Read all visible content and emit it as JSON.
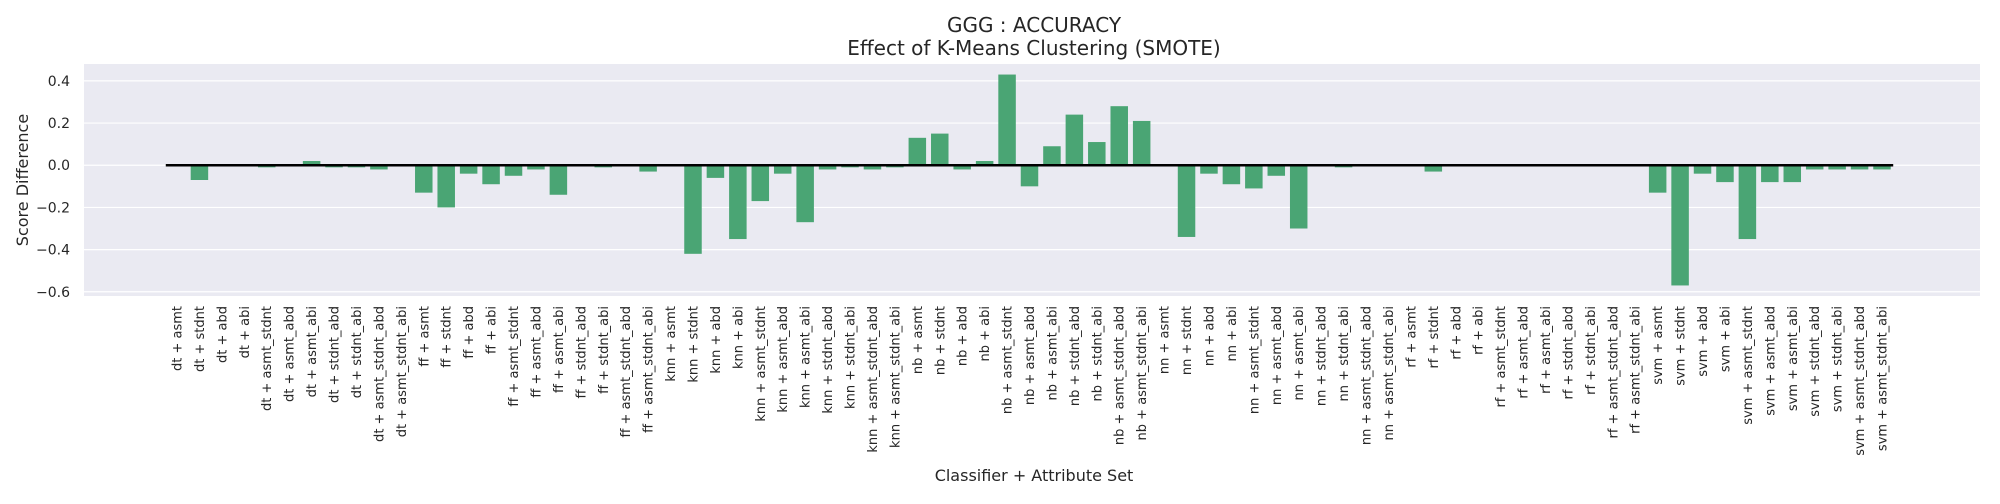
{
  "chart_data": {
    "type": "bar",
    "title": "GGG : ACCURACY",
    "subtitle": "Effect of K-Means Clustering (SMOTE)",
    "xlabel": "Classifier + Attribute Set",
    "ylabel": "Score Difference",
    "ylim": [
      -0.62,
      0.48
    ],
    "yticks": [
      -0.6,
      -0.4,
      -0.2,
      0.0,
      0.2,
      0.4
    ],
    "ytick_labels": [
      "−0.6",
      "−0.4",
      "−0.2",
      "0.0",
      "0.2",
      "0.4"
    ],
    "grid": true,
    "legend": "none",
    "bar_color": "#4aa574",
    "background": "#eaeaf2",
    "categories": [
      "dt + asmt",
      "dt + stdnt",
      "dt + abd",
      "dt + abi",
      "dt + asmt_stdnt",
      "dt + asmt_abd",
      "dt + asmt_abi",
      "dt + stdnt_abd",
      "dt + stdnt_abi",
      "dt + asmt_stdnt_abd",
      "dt + asmt_stdnt_abi",
      "ff + asmt",
      "ff + stdnt",
      "ff + abd",
      "ff + abi",
      "ff + asmt_stdnt",
      "ff + asmt_abd",
      "ff + asmt_abi",
      "ff + stdnt_abd",
      "ff + stdnt_abi",
      "ff + asmt_stdnt_abd",
      "ff + asmt_stdnt_abi",
      "knn + asmt",
      "knn + stdnt",
      "knn + abd",
      "knn + abi",
      "knn + asmt_stdnt",
      "knn + asmt_abd",
      "knn + asmt_abi",
      "knn + stdnt_abd",
      "knn + stdnt_abi",
      "knn + asmt_stdnt_abd",
      "knn + asmt_stdnt_abi",
      "nb + asmt",
      "nb + stdnt",
      "nb + abd",
      "nb + abi",
      "nb + asmt_stdnt",
      "nb + asmt_abd",
      "nb + asmt_abi",
      "nb + stdnt_abd",
      "nb + stdnt_abi",
      "nb + asmt_stdnt_abd",
      "nb + asmt_stdnt_abi",
      "nn + asmt",
      "nn + stdnt",
      "nn + abd",
      "nn + abi",
      "nn + asmt_stdnt",
      "nn + asmt_abd",
      "nn + asmt_abi",
      "nn + stdnt_abd",
      "nn + stdnt_abi",
      "nn + asmt_stdnt_abd",
      "nn + asmt_stdnt_abi",
      "rf + asmt",
      "rf + stdnt",
      "rf + abd",
      "rf + abi",
      "rf + asmt_stdnt",
      "rf + asmt_abd",
      "rf + asmt_abi",
      "rf + stdnt_abd",
      "rf + stdnt_abi",
      "rf + asmt_stdnt_abd",
      "rf + asmt_stdnt_abi",
      "svm + asmt",
      "svm + stdnt",
      "svm + abd",
      "svm + abi",
      "svm + asmt_stdnt",
      "svm + asmt_abd",
      "svm + asmt_abi",
      "svm + stdnt_abd",
      "svm + stdnt_abi",
      "svm + asmt_stdnt_abd",
      "svm + asmt_stdnt_abi"
    ],
    "values": [
      0.0,
      -0.07,
      0.0,
      0.0,
      -0.01,
      -0.005,
      0.02,
      -0.01,
      -0.01,
      -0.02,
      -0.005,
      -0.13,
      -0.2,
      -0.04,
      -0.09,
      -0.05,
      -0.02,
      -0.14,
      -0.005,
      -0.01,
      -0.005,
      -0.03,
      -0.005,
      -0.42,
      -0.06,
      -0.35,
      -0.17,
      -0.04,
      -0.27,
      -0.02,
      -0.01,
      -0.02,
      -0.01,
      0.13,
      0.15,
      -0.02,
      0.02,
      0.43,
      -0.1,
      0.09,
      0.24,
      0.11,
      0.28,
      0.21,
      0.0,
      -0.34,
      -0.04,
      -0.09,
      -0.11,
      -0.05,
      -0.3,
      -0.005,
      -0.01,
      -0.005,
      -0.005,
      0.0,
      -0.03,
      0.0,
      0.0,
      0.0,
      0.0,
      0.0,
      0.0,
      0.0,
      0.0,
      0.0,
      -0.13,
      -0.57,
      -0.04,
      -0.08,
      -0.35,
      -0.08,
      -0.08,
      -0.02,
      -0.02,
      -0.02,
      -0.02
    ]
  }
}
